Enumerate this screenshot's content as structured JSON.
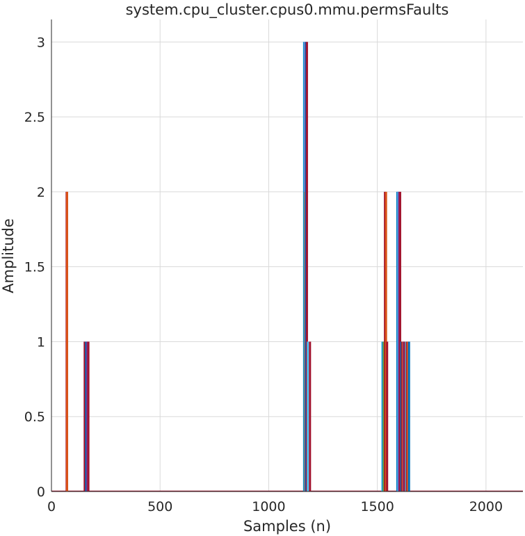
{
  "chart_data": {
    "type": "bar",
    "title": "system.cpu_cluster.cpus0.mmu.permsFaults",
    "xlabel": "Samples (n)",
    "ylabel": "Amplitude",
    "xlim": [
      0,
      2170
    ],
    "ylim": [
      0,
      3.15
    ],
    "grid": true,
    "x_ticks": [
      0,
      500,
      1000,
      1500,
      2000
    ],
    "x_tick_labels": [
      "0",
      "500",
      "1000",
      "1500",
      "2000"
    ],
    "y_ticks": [
      0,
      0.5,
      1,
      1.5,
      2,
      2.5,
      3
    ],
    "y_tick_labels": [
      "0",
      "0.5",
      "1",
      "1.5",
      "2",
      "2.5",
      "3"
    ],
    "bars": [
      {
        "x": 70,
        "value": 2,
        "color": "#a2142f"
      },
      {
        "x": 72,
        "value": 2,
        "color": "#d95319"
      },
      {
        "x": 153,
        "value": 1,
        "color": "#a2142f"
      },
      {
        "x": 160,
        "value": 1,
        "color": "#0072bd"
      },
      {
        "x": 165,
        "value": 1,
        "color": "#7e2f8e"
      },
      {
        "x": 170,
        "value": 1,
        "color": "#a2142f"
      },
      {
        "x": 1163,
        "value": 3,
        "color": "#0072bd"
      },
      {
        "x": 1166,
        "value": 3,
        "color": "#4dbeee"
      },
      {
        "x": 1168,
        "value": 2,
        "color": "#77ac30"
      },
      {
        "x": 1170,
        "value": 3,
        "color": "#7e2f8e"
      },
      {
        "x": 1173,
        "value": 3,
        "color": "#0072bd"
      },
      {
        "x": 1176,
        "value": 3,
        "color": "#a2142f"
      },
      {
        "x": 1180,
        "value": 1,
        "color": "#4dbeee"
      },
      {
        "x": 1190,
        "value": 1,
        "color": "#a2142f"
      },
      {
        "x": 1523,
        "value": 1,
        "color": "#4dbeee"
      },
      {
        "x": 1527,
        "value": 1,
        "color": "#0072bd"
      },
      {
        "x": 1530,
        "value": 1,
        "color": "#77ac30"
      },
      {
        "x": 1535,
        "value": 2,
        "color": "#a2142f"
      },
      {
        "x": 1540,
        "value": 2,
        "color": "#d95319"
      },
      {
        "x": 1545,
        "value": 1,
        "color": "#a2142f"
      },
      {
        "x": 1592,
        "value": 2,
        "color": "#0072bd"
      },
      {
        "x": 1596,
        "value": 2,
        "color": "#4dbeee"
      },
      {
        "x": 1600,
        "value": 2,
        "color": "#7e2f8e"
      },
      {
        "x": 1605,
        "value": 2,
        "color": "#a2142f"
      },
      {
        "x": 1610,
        "value": 1,
        "color": "#0072bd"
      },
      {
        "x": 1614,
        "value": 1,
        "color": "#a2142f"
      },
      {
        "x": 1618,
        "value": 1,
        "color": "#d95319"
      },
      {
        "x": 1622,
        "value": 1,
        "color": "#7e2f8e"
      },
      {
        "x": 1626,
        "value": 1,
        "color": "#a2142f"
      },
      {
        "x": 1632,
        "value": 1,
        "color": "#4dbeee"
      },
      {
        "x": 1636,
        "value": 1,
        "color": "#a2142f"
      },
      {
        "x": 1640,
        "value": 1,
        "color": "#d95319"
      },
      {
        "x": 1646,
        "value": 1,
        "color": "#0072bd"
      }
    ],
    "baseline_color": "#a2142f"
  }
}
